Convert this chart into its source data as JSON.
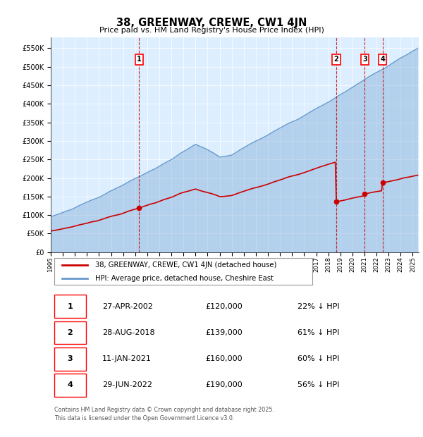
{
  "title": "38, GREENWAY, CREWE, CW1 4JN",
  "subtitle": "Price paid vs. HM Land Registry's House Price Index (HPI)",
  "sale_prices": [
    120000,
    139000,
    160000,
    190000
  ],
  "sale_labels": [
    "1",
    "2",
    "3",
    "4"
  ],
  "sale_year_floats": [
    2002.33,
    2018.67,
    2021.03,
    2022.5
  ],
  "sale_months": [
    88,
    284,
    313,
    330
  ],
  "sale_table": [
    [
      "1",
      "27-APR-2002",
      "£120,000",
      "22% ↓ HPI"
    ],
    [
      "2",
      "28-AUG-2018",
      "£139,000",
      "61% ↓ HPI"
    ],
    [
      "3",
      "11-JAN-2021",
      "£160,000",
      "60% ↓ HPI"
    ],
    [
      "4",
      "29-JUN-2022",
      "£190,000",
      "56% ↓ HPI"
    ]
  ],
  "legend_line1": "38, GREENWAY, CREWE, CW1 4JN (detached house)",
  "legend_line2": "HPI: Average price, detached house, Cheshire East",
  "footer": "Contains HM Land Registry data © Crown copyright and database right 2025.\nThis data is licensed under the Open Government Licence v3.0.",
  "hpi_color": "#6699cc",
  "price_color": "#cc0000",
  "vline_color": "#cc0000",
  "background_color": "#ddeeff",
  "ylim": [
    0,
    580000
  ],
  "yticks": [
    0,
    50000,
    100000,
    150000,
    200000,
    250000,
    300000,
    350000,
    400000,
    450000,
    500000,
    550000
  ],
  "xlim_start": 1995.0,
  "xlim_end": 2025.5,
  "hpi_seed": 42,
  "months_total": 366
}
